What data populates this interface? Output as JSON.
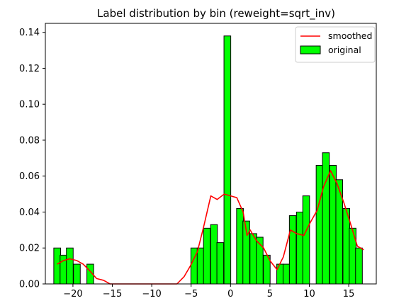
{
  "chart_data": {
    "type": "bar",
    "title": "Label distribution by bin (reweight=sqrt_inv)",
    "xlabel": "",
    "ylabel": "",
    "xlim": [
      -23.5,
      18.5
    ],
    "ylim": [
      0,
      0.145
    ],
    "xticks": [
      -20,
      -15,
      -10,
      -5,
      0,
      5,
      10,
      15
    ],
    "yticks": [
      0.0,
      0.02,
      0.04,
      0.06,
      0.08,
      0.1,
      0.12,
      0.14
    ],
    "xtick_labels": [
      "−20",
      "−15",
      "−10",
      "−5",
      "0",
      "5",
      "10",
      "15"
    ],
    "ytick_labels": [
      "0.00",
      "0.02",
      "0.04",
      "0.06",
      "0.08",
      "0.10",
      "0.12",
      "0.14"
    ],
    "grid": false,
    "legend_position": "top-right",
    "bar_width": 0.86,
    "bar_color": "#00ff00",
    "line_color": "#ff0000",
    "series": [
      {
        "name": "original",
        "type": "bar",
        "x": [
          -22.0,
          -21.2,
          -20.4,
          -19.5,
          -17.8,
          -4.6,
          -3.8,
          -3.0,
          -2.1,
          -1.3,
          -0.4,
          1.2,
          2.0,
          2.9,
          3.7,
          4.6,
          6.3,
          7.1,
          7.9,
          8.8,
          9.6,
          11.3,
          12.1,
          13.0,
          13.8,
          14.7,
          15.5,
          16.3
        ],
        "values": [
          0.02,
          0.016,
          0.02,
          0.011,
          0.011,
          0.02,
          0.02,
          0.031,
          0.033,
          0.023,
          0.138,
          0.042,
          0.035,
          0.028,
          0.026,
          0.016,
          0.011,
          0.011,
          0.038,
          0.04,
          0.049,
          0.066,
          0.073,
          0.066,
          0.058,
          0.042,
          0.031,
          0.02
        ]
      },
      {
        "name": "smoothed",
        "type": "line",
        "x": [
          -22.0,
          -21.2,
          -20.4,
          -19.5,
          -18.7,
          -17.8,
          -17.0,
          -16.1,
          -15.3,
          -14.4,
          -13.6,
          -12.7,
          -11.9,
          -11.0,
          -10.2,
          -9.3,
          -8.5,
          -7.6,
          -6.8,
          -5.9,
          -5.1,
          -4.2,
          -3.4,
          -2.5,
          -1.7,
          -0.8,
          0.0,
          0.8,
          1.6,
          2.1,
          2.5,
          3.3,
          4.2,
          5.0,
          5.9,
          6.7,
          7.6,
          8.4,
          9.3,
          10.1,
          11.0,
          11.8,
          12.7,
          13.5,
          14.4,
          15.2,
          16.1,
          16.9
        ],
        "values": [
          0.011,
          0.013,
          0.014,
          0.013,
          0.011,
          0.007,
          0.003,
          0.002,
          0.0,
          0.0,
          0.0,
          0.0,
          0.0,
          0.0,
          0.0,
          0.0,
          0.0,
          0.0,
          0.0,
          0.004,
          0.01,
          0.018,
          0.032,
          0.049,
          0.047,
          0.05,
          0.049,
          0.048,
          0.04,
          0.027,
          0.03,
          0.024,
          0.02,
          0.013,
          0.008,
          0.015,
          0.03,
          0.028,
          0.027,
          0.034,
          0.041,
          0.054,
          0.063,
          0.056,
          0.045,
          0.034,
          0.021,
          0.019
        ]
      }
    ]
  }
}
